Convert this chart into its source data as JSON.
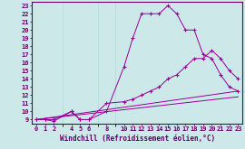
{
  "xlabel": "Windchill (Refroidissement éolien,°C)",
  "bg_color": "#cce8e8",
  "line_color": "#990099",
  "grid_color": "#aadddd",
  "xlim": [
    -0.5,
    23.5
  ],
  "ylim": [
    8.5,
    23.5
  ],
  "xticks": [
    0,
    1,
    2,
    4,
    5,
    6,
    8,
    10,
    11,
    12,
    13,
    14,
    15,
    16,
    17,
    18,
    19,
    20,
    21,
    22,
    23
  ],
  "yticks": [
    9,
    10,
    11,
    12,
    13,
    14,
    15,
    16,
    17,
    18,
    19,
    20,
    21,
    22,
    23
  ],
  "line1_x": [
    0,
    1,
    2,
    4,
    5,
    6,
    8,
    10,
    11,
    12,
    13,
    14,
    15,
    16,
    17,
    18,
    19,
    20,
    21,
    22,
    23
  ],
  "line1_y": [
    9,
    9,
    9,
    10,
    9,
    9,
    10,
    15.5,
    19,
    22,
    22,
    22,
    23,
    22,
    20,
    20,
    17,
    16.5,
    14.5,
    13,
    12.5
  ],
  "line2_x": [
    0,
    1,
    2,
    4,
    5,
    6,
    8,
    10,
    11,
    12,
    13,
    14,
    15,
    16,
    17,
    18,
    19,
    20,
    21,
    22,
    23
  ],
  "line2_y": [
    9,
    9,
    8.8,
    10,
    9,
    9,
    11,
    11.2,
    11.5,
    12,
    12.5,
    13,
    14,
    14.5,
    15.5,
    16.5,
    16.5,
    17.5,
    16.5,
    15,
    14
  ],
  "line3_x": [
    0,
    23
  ],
  "line3_y": [
    9,
    12.5
  ],
  "line4_x": [
    0,
    23
  ],
  "line4_y": [
    9,
    11.8
  ],
  "font_family": "monospace",
  "label_fontsize": 5.5,
  "tick_fontsize": 5.0
}
